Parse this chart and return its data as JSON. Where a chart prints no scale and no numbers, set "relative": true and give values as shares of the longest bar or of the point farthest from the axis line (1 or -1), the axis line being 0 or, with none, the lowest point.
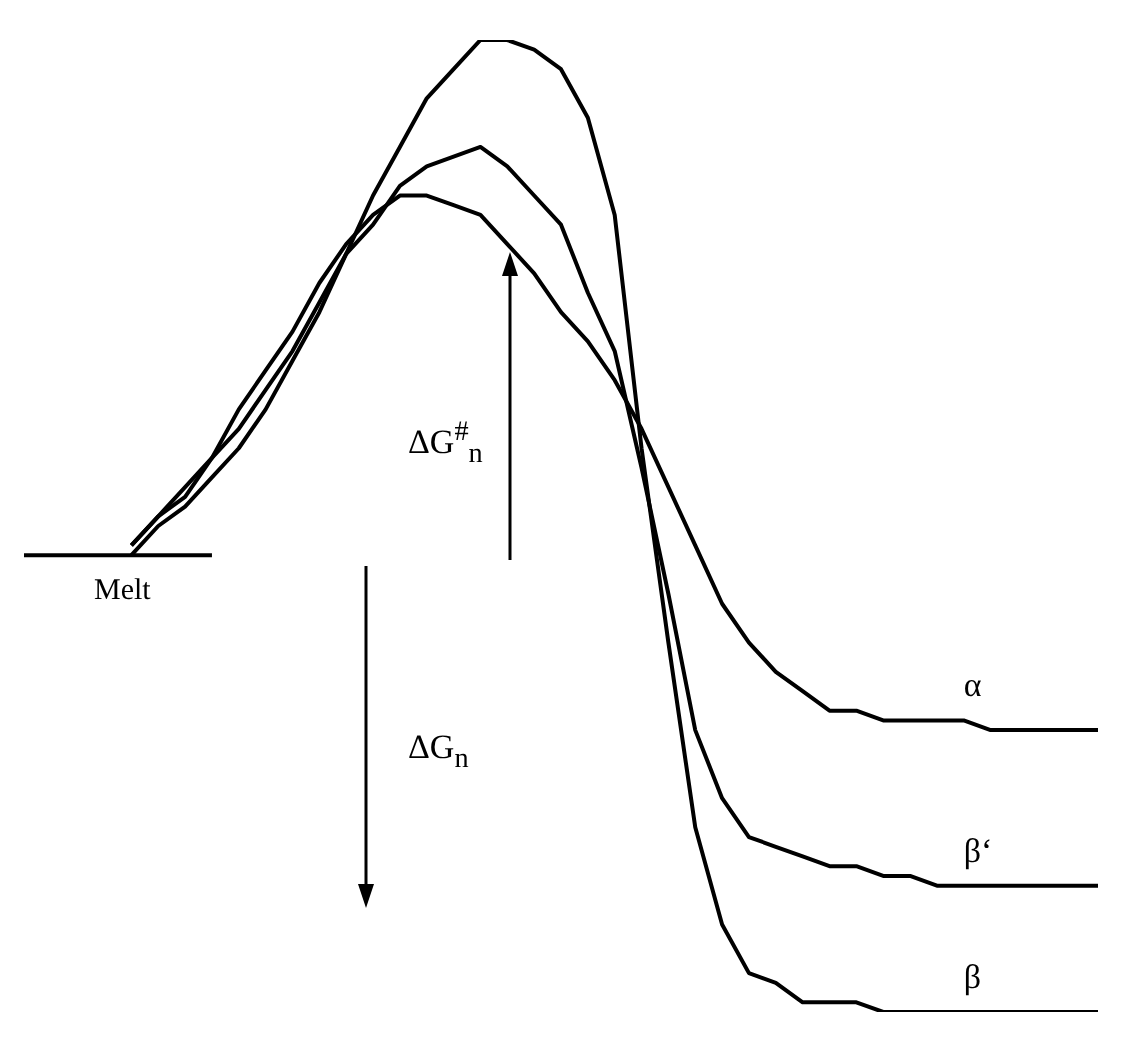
{
  "chart_data": {
    "type": "line",
    "relative": true,
    "grid": false,
    "legend": false,
    "marker": "none",
    "line_style": "solid",
    "categories": [
      null,
      null,
      null,
      null,
      null,
      null,
      null,
      null,
      null,
      null,
      null,
      null,
      null,
      null,
      null,
      null,
      null,
      null,
      null,
      null,
      null,
      null,
      null,
      null,
      null,
      null,
      null,
      null,
      null,
      null,
      null,
      null,
      null,
      null,
      null,
      null,
      null,
      null,
      null,
      null,
      null
    ],
    "annotations": [
      "ΔG$^{#}$$_{n}$",
      "ΔG$_{n}$"
    ],
    "series": [
      {
        "name": "Melt",
        "color": "#000000",
        "values": [
          0.47,
          0.47,
          0.47,
          0.47,
          0.47,
          0.47,
          0.47,
          0.47,
          null,
          null,
          null,
          null,
          null,
          null,
          null,
          null,
          null,
          null,
          null,
          null,
          null,
          null,
          null,
          null,
          null,
          null,
          null,
          null,
          null,
          null,
          null,
          null,
          null,
          null,
          null,
          null,
          null,
          null,
          null,
          null,
          null
        ]
      },
      {
        "name": "α",
        "color": "#000000",
        "values": [
          null,
          null,
          null,
          null,
          0.48,
          0.51,
          0.54,
          0.57,
          0.62,
          0.66,
          0.7,
          0.75,
          0.79,
          0.82,
          0.84,
          0.84,
          0.83,
          0.82,
          0.79,
          0.76,
          0.72,
          0.69,
          0.65,
          0.6,
          0.54,
          0.48,
          0.42,
          0.38,
          0.35,
          0.33,
          0.31,
          0.31,
          0.3,
          0.3,
          0.3,
          0.3,
          0.29,
          0.29,
          0.29,
          0.29,
          0.29
        ]
      },
      {
        "name": "β‘",
        "color": "#000000",
        "values": [
          null,
          null,
          null,
          null,
          0.48,
          0.51,
          0.53,
          0.57,
          0.6,
          0.64,
          0.68,
          0.73,
          0.78,
          0.81,
          0.85,
          0.87,
          0.88,
          0.89,
          0.87,
          0.84,
          0.81,
          0.74,
          0.68,
          0.56,
          0.43,
          0.29,
          0.22,
          0.18,
          0.17,
          0.16,
          0.15,
          0.15,
          0.14,
          0.14,
          0.13,
          0.13,
          0.13,
          0.13,
          0.13,
          0.13,
          0.13
        ]
      },
      {
        "name": "β",
        "color": "#000000",
        "values": [
          null,
          null,
          null,
          null,
          0.47,
          0.5,
          0.52,
          0.55,
          0.58,
          0.62,
          0.67,
          0.72,
          0.78,
          0.84,
          0.89,
          0.94,
          0.97,
          1.0,
          1.0,
          0.99,
          0.97,
          0.92,
          0.82,
          0.58,
          0.38,
          0.19,
          0.09,
          0.04,
          0.03,
          0.01,
          0.01,
          0.01,
          0.0,
          0.0,
          0.0,
          0.0,
          0.0,
          0.0,
          0.0,
          0.0,
          0.0
        ]
      }
    ]
  }
}
